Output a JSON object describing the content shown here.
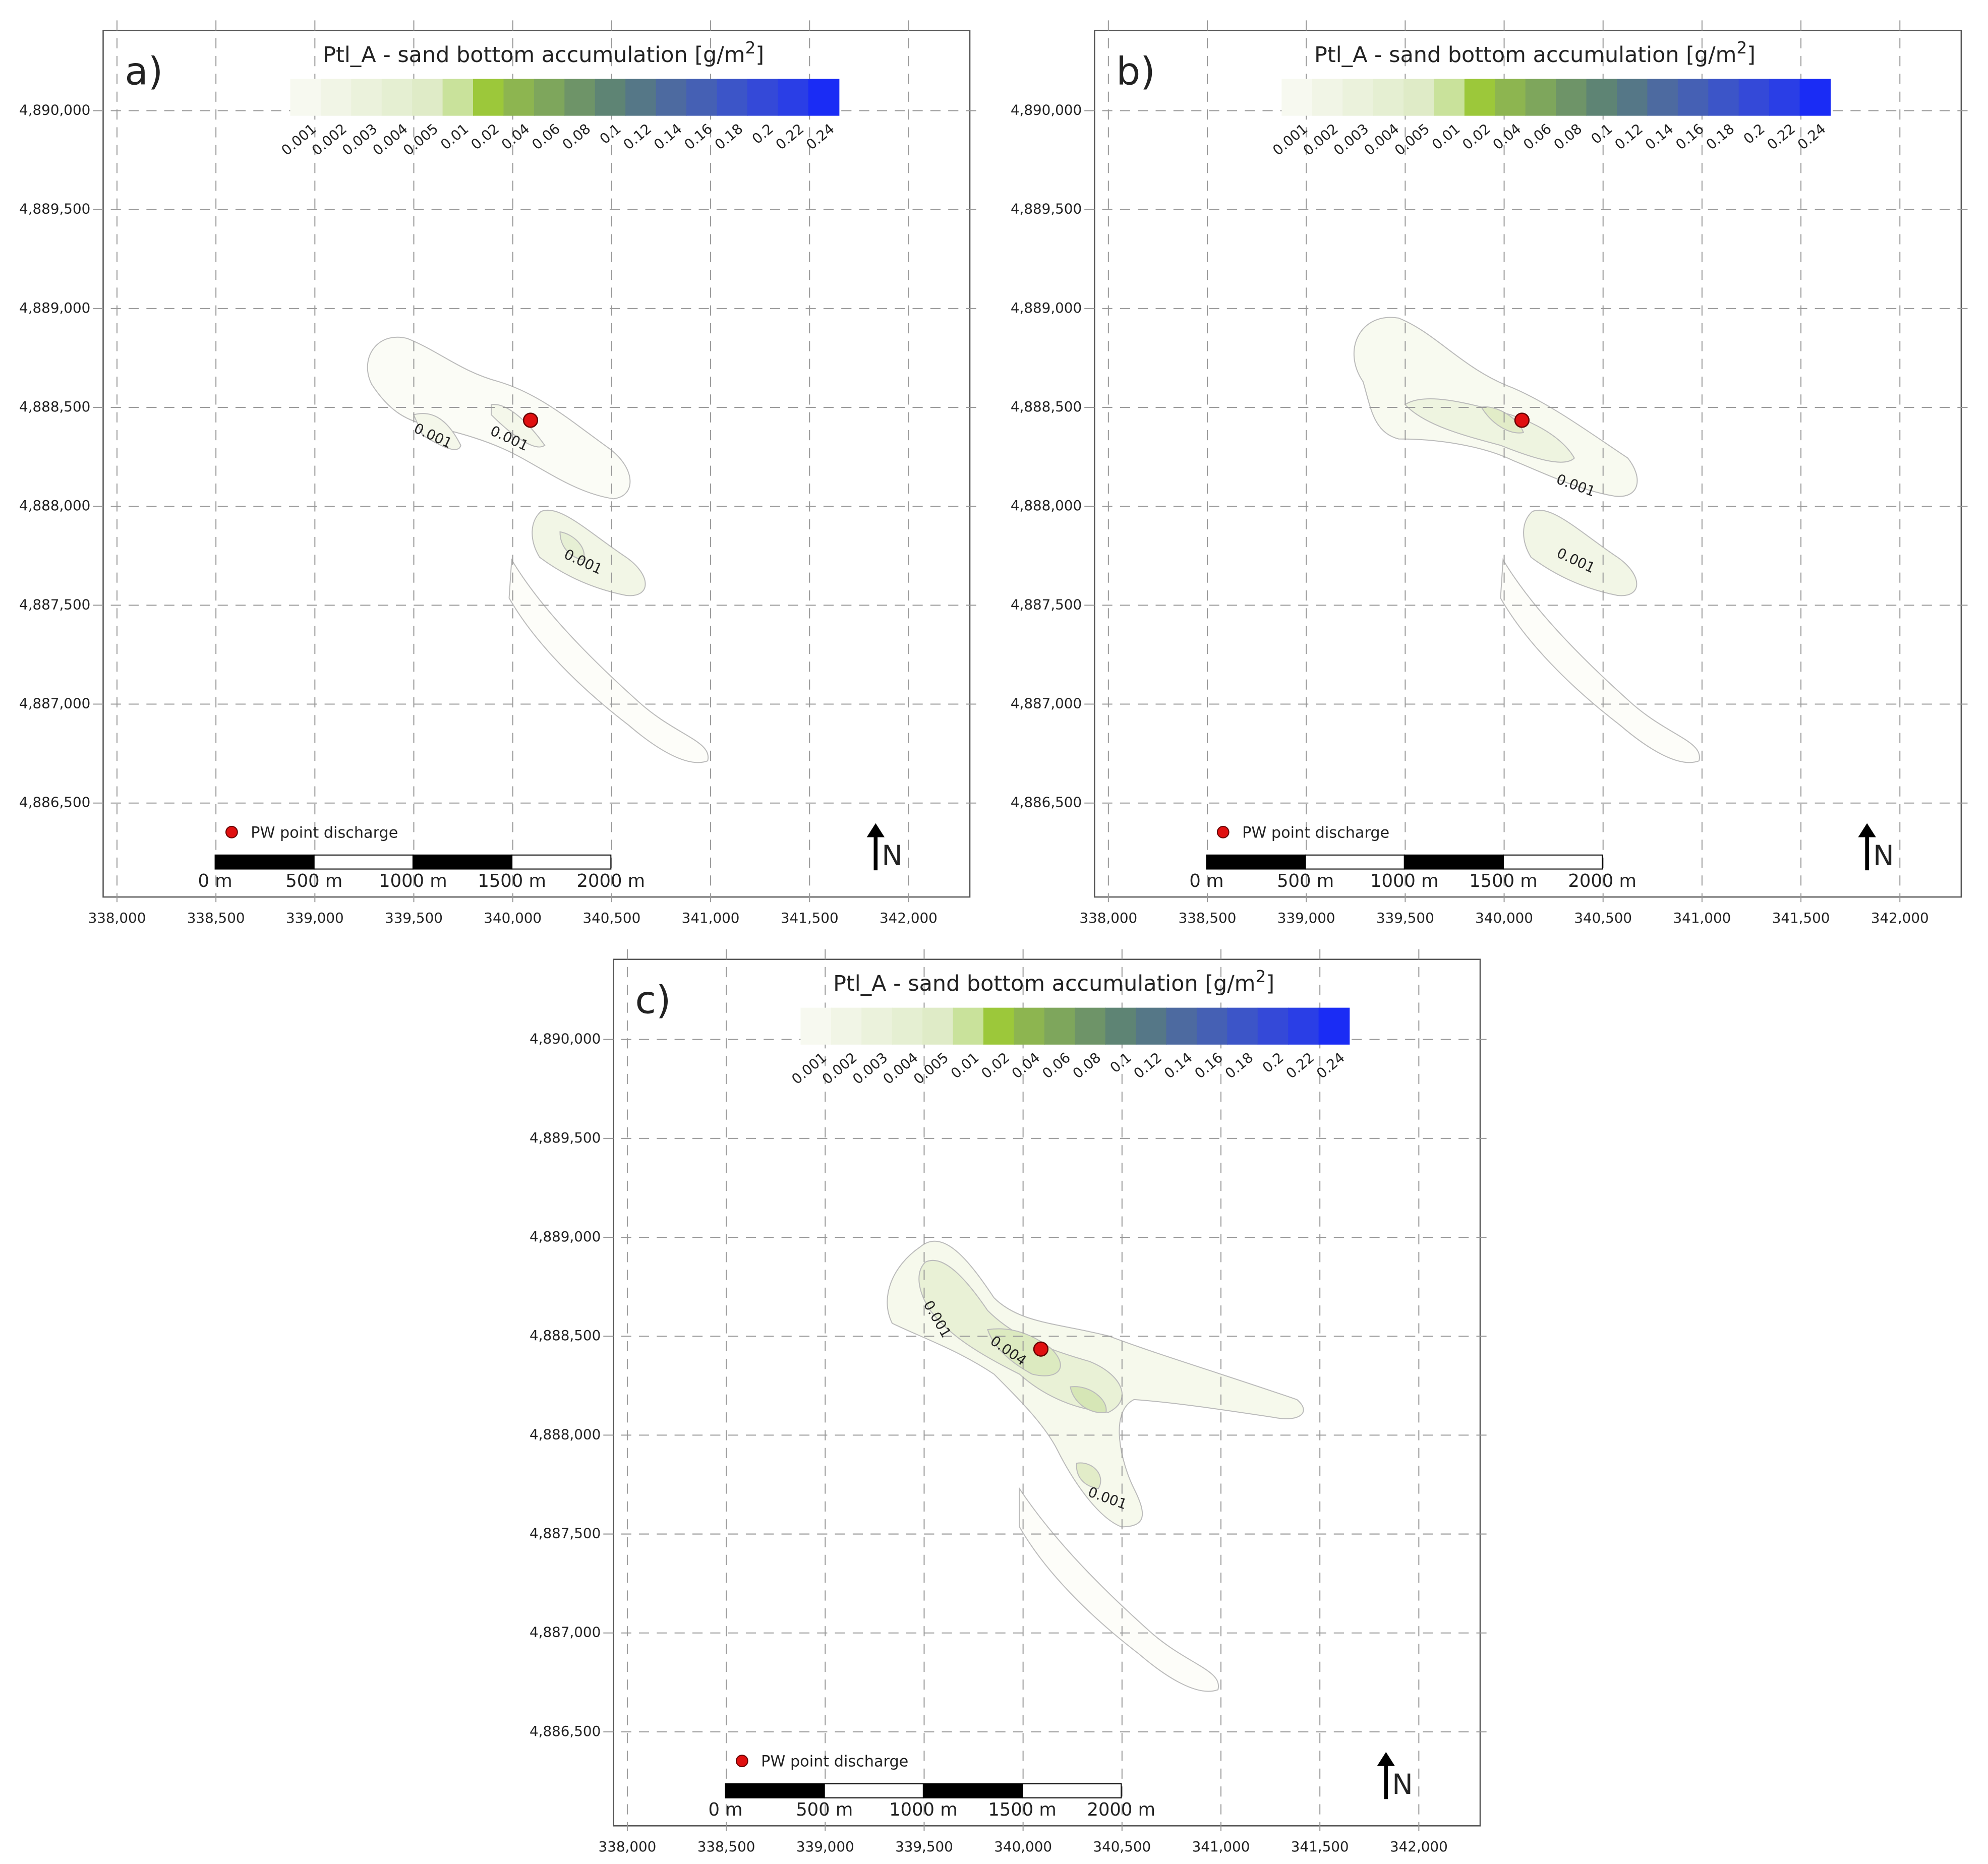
{
  "title": "Ptl_A - sand bottom accumulation [g/m",
  "title_sup": "2",
  "title_end": "]",
  "colorbar": {
    "labels": [
      0.001,
      0.002,
      0.003,
      0.004,
      0.005,
      0.01,
      0.02,
      0.04,
      0.06,
      0.08,
      0.1,
      0.12,
      0.14,
      0.16,
      0.18,
      0.2,
      0.22,
      0.24
    ],
    "colors": [
      "#f7f9f0",
      "#f1f5e6",
      "#ebf2dc",
      "#e5efd2",
      "#dfebc7",
      "#c9e29b",
      "#9cc83a",
      "#8db550",
      "#7ea65c",
      "#6e9468",
      "#5e8474",
      "#557787",
      "#4d6aa0",
      "#4560b4",
      "#3c55c8",
      "#3449d8",
      "#2a3ee6",
      "#1a2cf5"
    ]
  },
  "xlim": [
    337930,
    342310
  ],
  "ylim": [
    4886025,
    4890405
  ],
  "xticks": [
    {
      "value": 338000,
      "label": "338,000"
    },
    {
      "value": 338500,
      "label": "338,500"
    },
    {
      "value": 339000,
      "label": "339,000"
    },
    {
      "value": 339500,
      "label": "339,500"
    },
    {
      "value": 340000,
      "label": "340,000"
    },
    {
      "value": 340500,
      "label": "340,500"
    },
    {
      "value": 341000,
      "label": "341,000"
    },
    {
      "value": 341500,
      "label": "341,500"
    },
    {
      "value": 342000,
      "label": "342,000"
    }
  ],
  "yticks": [
    {
      "value": 4886500,
      "label": "4,886,500"
    },
    {
      "value": 4887000,
      "label": "4,887,000"
    },
    {
      "value": 4887500,
      "label": "4,887,500"
    },
    {
      "value": 4888000,
      "label": "4,888,000"
    },
    {
      "value": 4888500,
      "label": "4,888,500"
    },
    {
      "value": 4889000,
      "label": "4,889,000"
    },
    {
      "value": 4889500,
      "label": "4,889,500"
    },
    {
      "value": 4890000,
      "label": "4,890,000"
    }
  ],
  "legend": "PW point discharge",
  "scalebar": [
    {
      "value": 0,
      "label": "0 m"
    },
    {
      "value": 500,
      "label": "500 m"
    },
    {
      "value": 1000,
      "label": "1000 m"
    },
    {
      "value": 1500,
      "label": "1500 m"
    },
    {
      "value": 2000,
      "label": "2000 m"
    }
  ],
  "north": "N",
  "point": [
    340090,
    4888435
  ],
  "panels": [
    {
      "label": "a)",
      "contour_labels": [
        0.001,
        0.001,
        0.001
      ]
    },
    {
      "label": "b)",
      "contour_labels": [
        0.001,
        0.001
      ]
    },
    {
      "label": "c)",
      "contour_labels": [
        0.001,
        0.004,
        0.001
      ]
    }
  ]
}
